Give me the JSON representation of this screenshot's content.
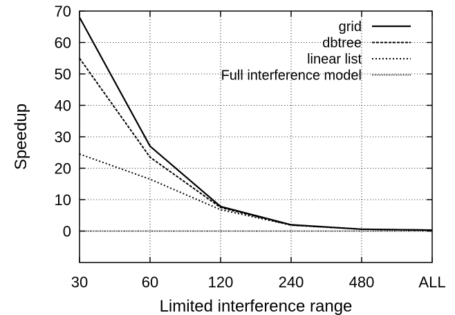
{
  "chart_data": {
    "type": "line",
    "title": "",
    "xlabel": "Limited interference range",
    "ylabel": "Speedup",
    "categories": [
      "30",
      "60",
      "120",
      "240",
      "480",
      "ALL"
    ],
    "ylim": [
      -10,
      70
    ],
    "yticks": [
      0,
      10,
      20,
      30,
      40,
      50,
      60,
      70
    ],
    "grid": true,
    "legend_position": "top-right",
    "series": [
      {
        "name": "grid",
        "values": [
          68,
          27,
          7.8,
          2.0,
          0.6,
          0.3
        ],
        "style": "solid"
      },
      {
        "name": "dbtree",
        "values": [
          55,
          23.5,
          7.5,
          1.9,
          0.6,
          0.3
        ],
        "style": "dashed"
      },
      {
        "name": "linear list",
        "values": [
          24.5,
          16.5,
          6.8,
          1.9,
          0.6,
          0.3
        ],
        "style": "dotted"
      },
      {
        "name": "Full interference model",
        "values": [
          0,
          0,
          0,
          0,
          0,
          0
        ],
        "style": "fine-dotted"
      }
    ],
    "colors": {
      "lines": "#000000",
      "grid": "#000000",
      "background": "#ffffff"
    }
  }
}
